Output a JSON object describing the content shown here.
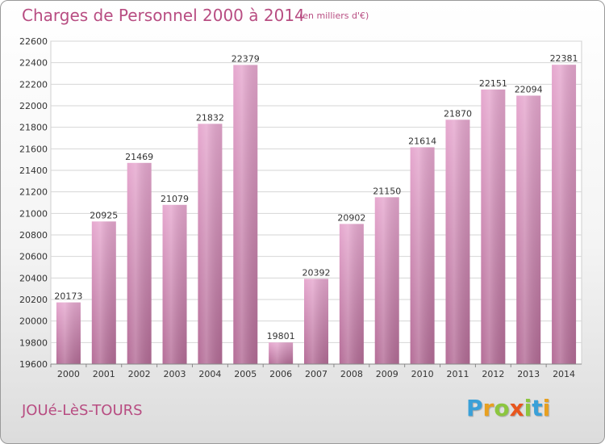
{
  "header": {
    "title": "Charges de Personnel 2000 à 2014",
    "subtitle": "(en milliers d'€)"
  },
  "footer": {
    "city": "JOUé-LèS-TOURS",
    "logo_text": "Proxiti"
  },
  "colors": {
    "accent": "#b84d82",
    "bar_top": "#e6a8cf",
    "bar_bottom": "#b46d97",
    "logo": [
      "#3aa0d8",
      "#e8a020",
      "#8cc63f",
      "#e8561e",
      "#8cc63f",
      "#3aa0d8",
      "#e8a020"
    ]
  },
  "chart_data": {
    "type": "bar",
    "categories": [
      "2000",
      "2001",
      "2002",
      "2003",
      "2004",
      "2005",
      "2006",
      "2007",
      "2008",
      "2009",
      "2010",
      "2011",
      "2012",
      "2013",
      "2014"
    ],
    "values": [
      20173,
      20925,
      21469,
      21079,
      21832,
      22379,
      19801,
      20392,
      20902,
      21150,
      21614,
      21870,
      22151,
      22094,
      22381
    ],
    "ylim": [
      19600,
      22600
    ],
    "yticks": [
      19600,
      19800,
      20000,
      20200,
      20400,
      20600,
      20800,
      21000,
      21200,
      21400,
      21600,
      21800,
      22000,
      22200,
      22400,
      22600
    ],
    "grid": true,
    "data_labels": true
  }
}
